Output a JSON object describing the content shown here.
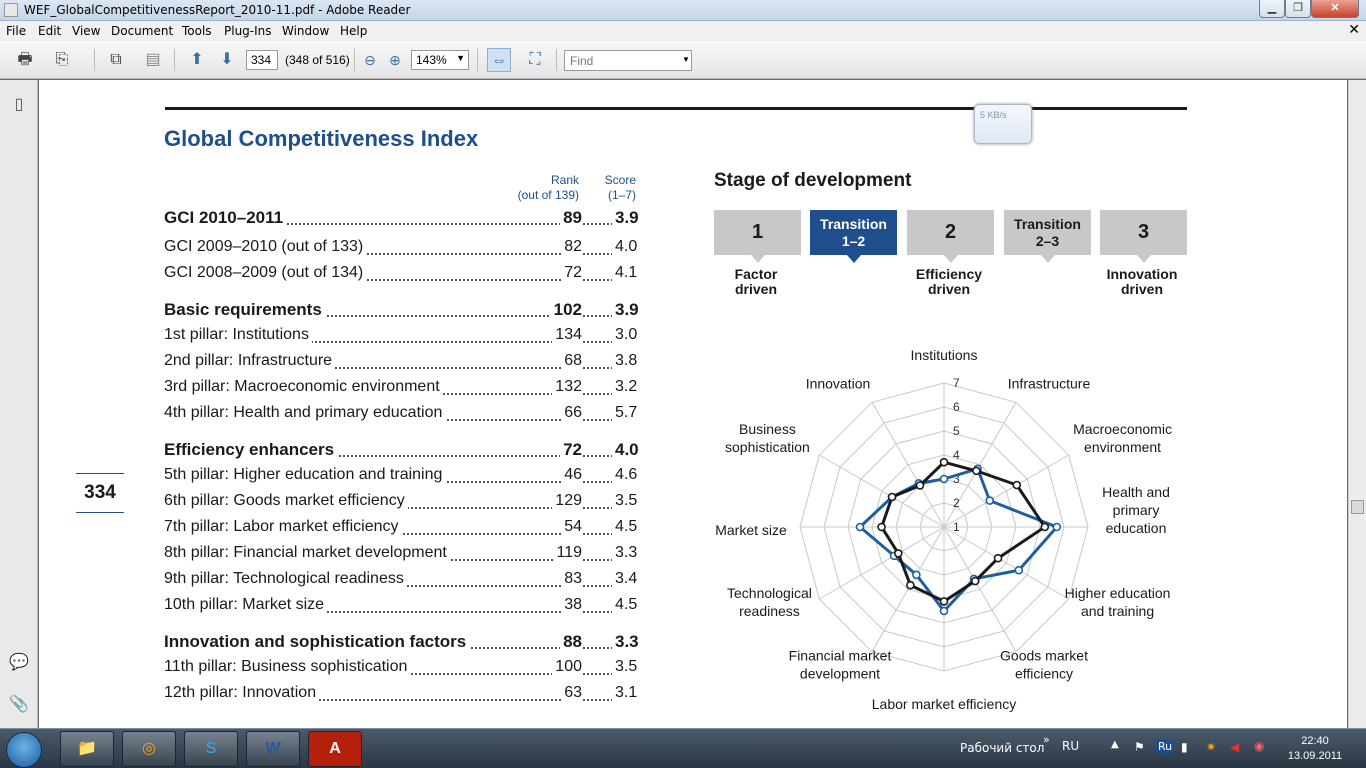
{
  "window": {
    "title": "WEF_GlobalCompetitivenessReport_2010-11.pdf - Adobe Reader"
  },
  "menu": [
    "File",
    "Edit",
    "View",
    "Document",
    "Tools",
    "Plug-Ins",
    "Window",
    "Help"
  ],
  "toolbar": {
    "page_input": "334",
    "page_of": "(348 of 516)",
    "zoom": "143%",
    "find_placeholder": "Find"
  },
  "download_widget": {
    "speed": "5 KB/s"
  },
  "doc": {
    "title": "Global Competitiveness Index",
    "rank_header": [
      "Rank",
      "(out of 139)"
    ],
    "score_header": [
      "Score",
      "(1–7)"
    ],
    "page_number": "334",
    "rows": [
      {
        "label": "GCI 2010–2011",
        "rank": "89",
        "score": "3.9",
        "bold": true
      },
      {
        "label": "GCI 2009–2010 (out of 133)",
        "rank": "82",
        "score": "4.0"
      },
      {
        "label": "GCI 2008–2009 (out of 134)",
        "rank": "72",
        "score": "4.1"
      },
      {
        "label": "Basic requirements",
        "rank": "102",
        "score": "3.9",
        "bold": true
      },
      {
        "label": "1st pillar: Institutions",
        "rank": "134",
        "score": "3.0"
      },
      {
        "label": "2nd pillar: Infrastructure",
        "rank": "68",
        "score": "3.8"
      },
      {
        "label": "3rd pillar: Macroeconomic environment",
        "rank": "132",
        "score": "3.2"
      },
      {
        "label": "4th pillar: Health and primary education",
        "rank": "66",
        "score": "5.7"
      },
      {
        "label": "Efficiency enhancers",
        "rank": "72",
        "score": "4.0",
        "bold": true
      },
      {
        "label": "5th pillar: Higher education and training",
        "rank": "46",
        "score": "4.6"
      },
      {
        "label": "6th pillar: Goods market efficiency",
        "rank": "129",
        "score": "3.5"
      },
      {
        "label": "7th pillar: Labor market efficiency",
        "rank": "54",
        "score": "4.5"
      },
      {
        "label": "8th pillar: Financial market development",
        "rank": "119",
        "score": "3.3"
      },
      {
        "label": "9th pillar: Technological readiness",
        "rank": "83",
        "score": "3.4"
      },
      {
        "label": "10th pillar: Market size",
        "rank": "38",
        "score": "4.5"
      },
      {
        "label": "Innovation and sophistication factors",
        "rank": "88",
        "score": "3.3",
        "bold": true
      },
      {
        "label": "11th pillar: Business sophistication",
        "rank": "100",
        "score": "3.5"
      },
      {
        "label": "12th pillar: Innovation",
        "rank": "63",
        "score": "3.1"
      }
    ],
    "stage": {
      "title": "Stage of development",
      "boxes": [
        {
          "line1": "1",
          "line2": ""
        },
        {
          "line1": "Transition",
          "line2": "1–2"
        },
        {
          "line1": "2",
          "line2": ""
        },
        {
          "line1": "Transition",
          "line2": "2–3"
        },
        {
          "line1": "3",
          "line2": ""
        }
      ],
      "labels": [
        {
          "line1": "Factor",
          "line2": "driven"
        },
        {
          "line1": "Efficiency",
          "line2": "driven"
        },
        {
          "line1": "Innovation",
          "line2": "driven"
        }
      ],
      "active_index": 1,
      "active_color": "#1f4e8c"
    }
  },
  "chart_data": {
    "type": "radar",
    "scale_labels": [
      "1",
      "2",
      "3",
      "4",
      "5",
      "6",
      "7"
    ],
    "range": [
      1,
      7
    ],
    "axes": [
      [
        "Institutions"
      ],
      [
        "Infrastructure"
      ],
      [
        "Macroeconomic",
        "environment"
      ],
      [
        "Health and",
        "primary",
        "education"
      ],
      [
        "Higher education",
        "and training"
      ],
      [
        "Goods market",
        "efficiency"
      ],
      [
        "Labor market efficiency"
      ],
      [
        "Financial market",
        "development"
      ],
      [
        "Technological",
        "readiness"
      ],
      [
        "Market size"
      ],
      [
        "Business",
        "sophistication"
      ],
      [
        "Innovation"
      ]
    ],
    "series": [
      {
        "color": "#1f5fa0",
        "values": [
          3.0,
          3.8,
          3.2,
          5.7,
          4.6,
          3.5,
          4.5,
          3.3,
          3.4,
          4.5,
          3.5,
          3.1
        ]
      },
      {
        "color": "#1a1a1a",
        "values": [
          3.7,
          3.7,
          4.5,
          5.2,
          3.6,
          3.6,
          4.1,
          3.8,
          3.2,
          3.6,
          3.5,
          3.0
        ]
      }
    ]
  },
  "taskbar": {
    "tray_desktop": "Рабочий стол",
    "tray_lang": "RU",
    "tray_lang_badge": "Ru",
    "time": "22:40",
    "date": "13.09.2011"
  }
}
